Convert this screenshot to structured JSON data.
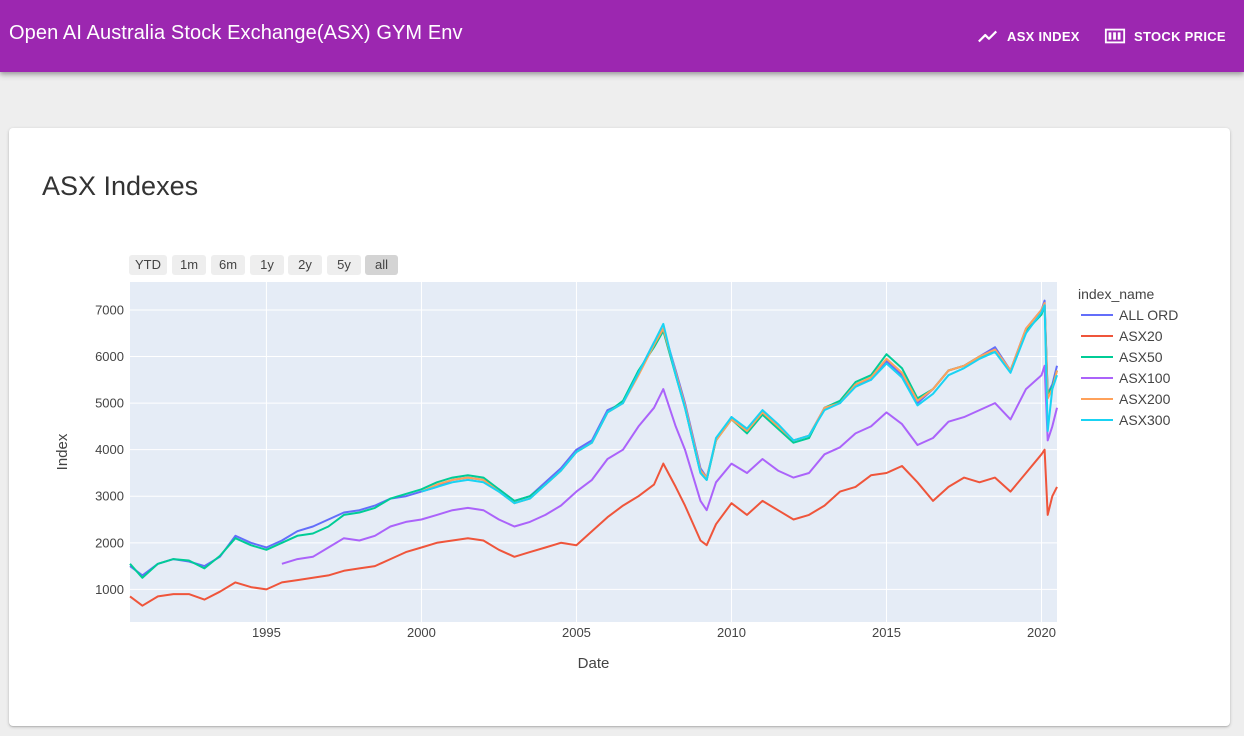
{
  "appbar": {
    "title": "Open AI Australia Stock Exchange(ASX) GYM Env",
    "nav": [
      {
        "label": "ASX INDEX",
        "icon": "trending-up-icon"
      },
      {
        "label": "STOCK PRICE",
        "icon": "ticker-icon"
      }
    ]
  },
  "card": {
    "title": "ASX Indexes"
  },
  "range_selector": {
    "buttons": [
      "YTD",
      "1m",
      "6m",
      "1y",
      "2y",
      "5y",
      "all"
    ],
    "active": "all"
  },
  "colors": {
    "appbar": "#9c27b0",
    "plot_bg": "#e5ecf6",
    "ALL ORD": "#636efa",
    "ASX20": "#ef553b",
    "ASX50": "#00cc96",
    "ASX100": "#ab63fa",
    "ASX200": "#ffa15a",
    "ASX300": "#19d3f3"
  },
  "chart_data": {
    "type": "line",
    "title": "",
    "xlabel": "Date",
    "ylabel": "Index",
    "x_tick_labels": [
      "1995",
      "2000",
      "2005",
      "2010",
      "2015",
      "2020"
    ],
    "y_tick_labels": [
      "1000",
      "2000",
      "3000",
      "4000",
      "5000",
      "6000",
      "7000"
    ],
    "xlim": [
      1990.6,
      2020.5
    ],
    "ylim": [
      300,
      7600
    ],
    "grid": true,
    "legend_title": "index_name",
    "legend_position": "right",
    "series": [
      {
        "name": "ALL ORD",
        "x": [
          1990.6,
          1991.0,
          1991.5,
          1992.0,
          1992.5,
          1993.0,
          1993.5,
          1994.0,
          1994.5,
          1995.0,
          1995.5,
          1996.0,
          1996.5,
          1997.0,
          1997.5,
          1998.0,
          1998.5,
          1999.0,
          1999.5,
          2000.0,
          2000.5,
          2001.0,
          2001.5,
          2002.0,
          2002.5,
          2003.0,
          2003.5,
          2004.0,
          2004.5,
          2005.0,
          2005.5,
          2006.0,
          2006.5,
          2007.0,
          2007.5,
          2007.8,
          2008.2,
          2008.5,
          2009.0,
          2009.2,
          2009.5,
          2010.0,
          2010.5,
          2011.0,
          2011.5,
          2012.0,
          2012.5,
          2013.0,
          2013.5,
          2014.0,
          2014.5,
          2015.0,
          2015.5,
          2016.0,
          2016.5,
          2017.0,
          2017.5,
          2018.0,
          2018.5,
          2019.0,
          2019.5,
          2020.0,
          2020.1,
          2020.2,
          2020.35,
          2020.5
        ],
        "values": [
          1500,
          1300,
          1550,
          1650,
          1600,
          1500,
          1700,
          2150,
          2000,
          1900,
          2050,
          2250,
          2350,
          2500,
          2650,
          2700,
          2800,
          2950,
          3000,
          3100,
          3200,
          3350,
          3400,
          3350,
          3150,
          2900,
          3000,
          3300,
          3600,
          4000,
          4200,
          4850,
          5000,
          5650,
          6300,
          6600,
          5700,
          5000,
          3600,
          3400,
          4200,
          4700,
          4400,
          4800,
          4500,
          4200,
          4300,
          4900,
          5000,
          5400,
          5500,
          5900,
          5600,
          5000,
          5300,
          5700,
          5800,
          6000,
          6200,
          5700,
          6600,
          7000,
          7200,
          5200,
          5400,
          5800
        ]
      },
      {
        "name": "ASX20",
        "x": [
          1990.6,
          1991.0,
          1991.5,
          1992.0,
          1992.5,
          1993.0,
          1993.5,
          1994.0,
          1994.5,
          1995.0,
          1995.5,
          1996.0,
          1996.5,
          1997.0,
          1997.5,
          1998.0,
          1998.5,
          1999.0,
          1999.5,
          2000.0,
          2000.5,
          2001.0,
          2001.5,
          2002.0,
          2002.5,
          2003.0,
          2003.5,
          2004.0,
          2004.5,
          2005.0,
          2005.5,
          2006.0,
          2006.5,
          2007.0,
          2007.5,
          2007.8,
          2008.2,
          2008.5,
          2009.0,
          2009.2,
          2009.5,
          2010.0,
          2010.5,
          2011.0,
          2011.5,
          2012.0,
          2012.5,
          2013.0,
          2013.5,
          2014.0,
          2014.5,
          2015.0,
          2015.5,
          2016.0,
          2016.5,
          2017.0,
          2017.5,
          2018.0,
          2018.5,
          2019.0,
          2019.5,
          2020.0,
          2020.1,
          2020.2,
          2020.35,
          2020.5
        ],
        "values": [
          850,
          650,
          850,
          900,
          900,
          780,
          950,
          1150,
          1050,
          1000,
          1150,
          1200,
          1250,
          1300,
          1400,
          1450,
          1500,
          1650,
          1800,
          1900,
          2000,
          2050,
          2100,
          2050,
          1850,
          1700,
          1800,
          1900,
          2000,
          1950,
          2250,
          2550,
          2800,
          3000,
          3250,
          3700,
          3200,
          2800,
          2050,
          1950,
          2400,
          2850,
          2600,
          2900,
          2700,
          2500,
          2600,
          2800,
          3100,
          3200,
          3450,
          3500,
          3650,
          3300,
          2900,
          3200,
          3400,
          3300,
          3400,
          3100,
          3500,
          3900,
          4000,
          2600,
          3000,
          3200
        ]
      },
      {
        "name": "ASX50",
        "x": [
          1990.6,
          1991.0,
          1991.5,
          1992.0,
          1992.5,
          1993.0,
          1993.5,
          1994.0,
          1994.5,
          1995.0,
          1995.5,
          1996.0,
          1996.5,
          1997.0,
          1997.5,
          1998.0,
          1998.5,
          1999.0,
          1999.5,
          2000.0,
          2000.5,
          2001.0,
          2001.5,
          2002.0,
          2002.5,
          2003.0,
          2003.5,
          2004.0,
          2004.5,
          2005.0,
          2005.5,
          2006.0,
          2006.5,
          2007.0,
          2007.5,
          2007.8,
          2008.2,
          2008.5,
          2009.0,
          2009.2,
          2009.5,
          2010.0,
          2010.5,
          2011.0,
          2011.5,
          2012.0,
          2012.5,
          2013.0,
          2013.5,
          2014.0,
          2014.5,
          2015.0,
          2015.5,
          2016.0,
          2016.5,
          2017.0,
          2017.5,
          2018.0,
          2018.5,
          2019.0,
          2019.5,
          2020.0,
          2020.1,
          2020.2,
          2020.35,
          2020.5
        ],
        "values": [
          1550,
          1250,
          1550,
          1650,
          1620,
          1450,
          1720,
          2100,
          1950,
          1850,
          2000,
          2150,
          2200,
          2350,
          2600,
          2650,
          2750,
          2950,
          3050,
          3150,
          3300,
          3400,
          3450,
          3400,
          3150,
          2900,
          3000,
          3250,
          3550,
          3950,
          4150,
          4800,
          5050,
          5700,
          6200,
          6550,
          5600,
          4900,
          3500,
          3350,
          4200,
          4650,
          4350,
          4750,
          4450,
          4150,
          4250,
          4900,
          5050,
          5450,
          5600,
          6050,
          5750,
          5100,
          5300,
          5700,
          5800,
          6000,
          6100,
          5700,
          6550,
          6900,
          7100,
          5200,
          5350,
          5700
        ]
      },
      {
        "name": "ASX100",
        "x": [
          1995.5,
          1996.0,
          1996.5,
          1997.0,
          1997.5,
          1998.0,
          1998.5,
          1999.0,
          1999.5,
          2000.0,
          2000.5,
          2001.0,
          2001.5,
          2002.0,
          2002.5,
          2003.0,
          2003.5,
          2004.0,
          2004.5,
          2005.0,
          2005.5,
          2006.0,
          2006.5,
          2007.0,
          2007.5,
          2007.8,
          2008.2,
          2008.5,
          2009.0,
          2009.2,
          2009.5,
          2010.0,
          2010.5,
          2011.0,
          2011.5,
          2012.0,
          2012.5,
          2013.0,
          2013.5,
          2014.0,
          2014.5,
          2015.0,
          2015.5,
          2016.0,
          2016.5,
          2017.0,
          2017.5,
          2018.0,
          2018.5,
          2019.0,
          2019.5,
          2020.0,
          2020.1,
          2020.2,
          2020.35,
          2020.5
        ],
        "values": [
          1550,
          1650,
          1700,
          1900,
          2100,
          2050,
          2150,
          2350,
          2450,
          2500,
          2600,
          2700,
          2750,
          2700,
          2500,
          2350,
          2450,
          2600,
          2800,
          3100,
          3350,
          3800,
          4000,
          4500,
          4900,
          5300,
          4500,
          4000,
          2900,
          2700,
          3300,
          3700,
          3500,
          3800,
          3550,
          3400,
          3500,
          3900,
          4050,
          4350,
          4500,
          4800,
          4550,
          4100,
          4250,
          4600,
          4700,
          4850,
          5000,
          4650,
          5300,
          5600,
          5800,
          4200,
          4500,
          4900
        ]
      },
      {
        "name": "ASX200",
        "x": [
          2000.0,
          2000.5,
          2001.0,
          2001.5,
          2002.0,
          2002.5,
          2003.0,
          2003.5,
          2004.0,
          2004.5,
          2005.0,
          2005.5,
          2006.0,
          2006.5,
          2007.0,
          2007.5,
          2007.8,
          2008.2,
          2008.5,
          2009.0,
          2009.2,
          2009.5,
          2010.0,
          2010.5,
          2011.0,
          2011.5,
          2012.0,
          2012.5,
          2013.0,
          2013.5,
          2014.0,
          2014.5,
          2015.0,
          2015.5,
          2016.0,
          2016.5,
          2017.0,
          2017.5,
          2018.0,
          2018.5,
          2019.0,
          2019.5,
          2020.0,
          2020.1,
          2020.2,
          2020.35,
          2020.5
        ],
        "values": [
          3100,
          3250,
          3350,
          3400,
          3350,
          3100,
          2850,
          2950,
          3250,
          3550,
          3950,
          4150,
          4800,
          5000,
          5600,
          6250,
          6600,
          5650,
          4950,
          3550,
          3400,
          4200,
          4650,
          4400,
          4800,
          4500,
          4200,
          4300,
          4900,
          5000,
          5400,
          5550,
          5950,
          5650,
          5050,
          5300,
          5700,
          5800,
          6000,
          6150,
          5700,
          6600,
          7000,
          7150,
          5100,
          5300,
          5700
        ]
      },
      {
        "name": "ASX300",
        "x": [
          2000.0,
          2000.5,
          2001.0,
          2001.5,
          2002.0,
          2002.5,
          2003.0,
          2003.5,
          2004.0,
          2004.5,
          2005.0,
          2005.5,
          2006.0,
          2006.5,
          2007.0,
          2007.5,
          2007.8,
          2008.2,
          2008.5,
          2009.0,
          2009.2,
          2009.5,
          2010.0,
          2010.5,
          2011.0,
          2011.5,
          2012.0,
          2012.5,
          2013.0,
          2013.5,
          2014.0,
          2014.5,
          2015.0,
          2015.5,
          2016.0,
          2016.5,
          2017.0,
          2017.5,
          2018.0,
          2018.5,
          2019.0,
          2019.5,
          2020.0,
          2020.1,
          2020.2,
          2020.35,
          2020.5
        ],
        "values": [
          3100,
          3200,
          3300,
          3350,
          3300,
          3100,
          2850,
          2950,
          3250,
          3550,
          3950,
          4150,
          4800,
          5000,
          5650,
          6300,
          6700,
          5600,
          4900,
          3500,
          3350,
          4250,
          4700,
          4450,
          4850,
          4550,
          4200,
          4300,
          4850,
          5000,
          5350,
          5500,
          5850,
          5550,
          4950,
          5200,
          5600,
          5750,
          5950,
          6100,
          5650,
          6500,
          6950,
          7100,
          4400,
          5300,
          5600
        ]
      }
    ]
  }
}
